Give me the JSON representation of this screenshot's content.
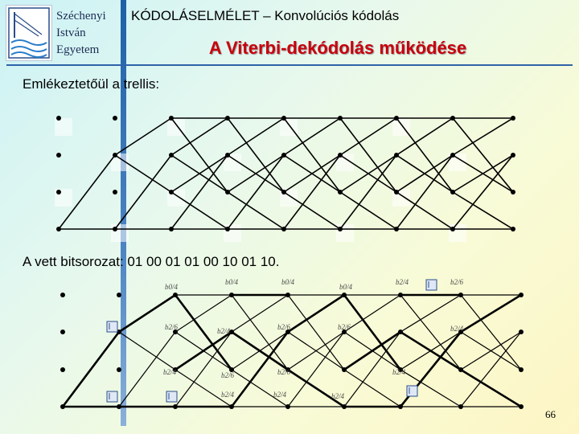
{
  "university": {
    "line1": "Széchenyi",
    "line2": "István",
    "line3": "Egyetem"
  },
  "course_title": "KÓDOLÁSELMÉLET – Konvolúciós kódolás",
  "slide_title": "A Viterbi-dekódolás működése",
  "intro_text": "Emlékeztetőül a trellis:",
  "received_text": "A vett bitsorozat: 01 00 01 01 00 10 01 10.",
  "trellis_labels": [
    "b0/4",
    "b0/4",
    "b0/4",
    "b0/4",
    "b2/4",
    "b2/6",
    "b2/4",
    "b2/6",
    "b2/6",
    "b2/4",
    "b2/6",
    "b2/6",
    "b2/4",
    "b2/6",
    "b2/4",
    "b2/4",
    "b2/4",
    "b2/4"
  ],
  "page_number": "66",
  "colors": {
    "title_red": "#c8000d",
    "accent_blue": "#2f63a8"
  }
}
